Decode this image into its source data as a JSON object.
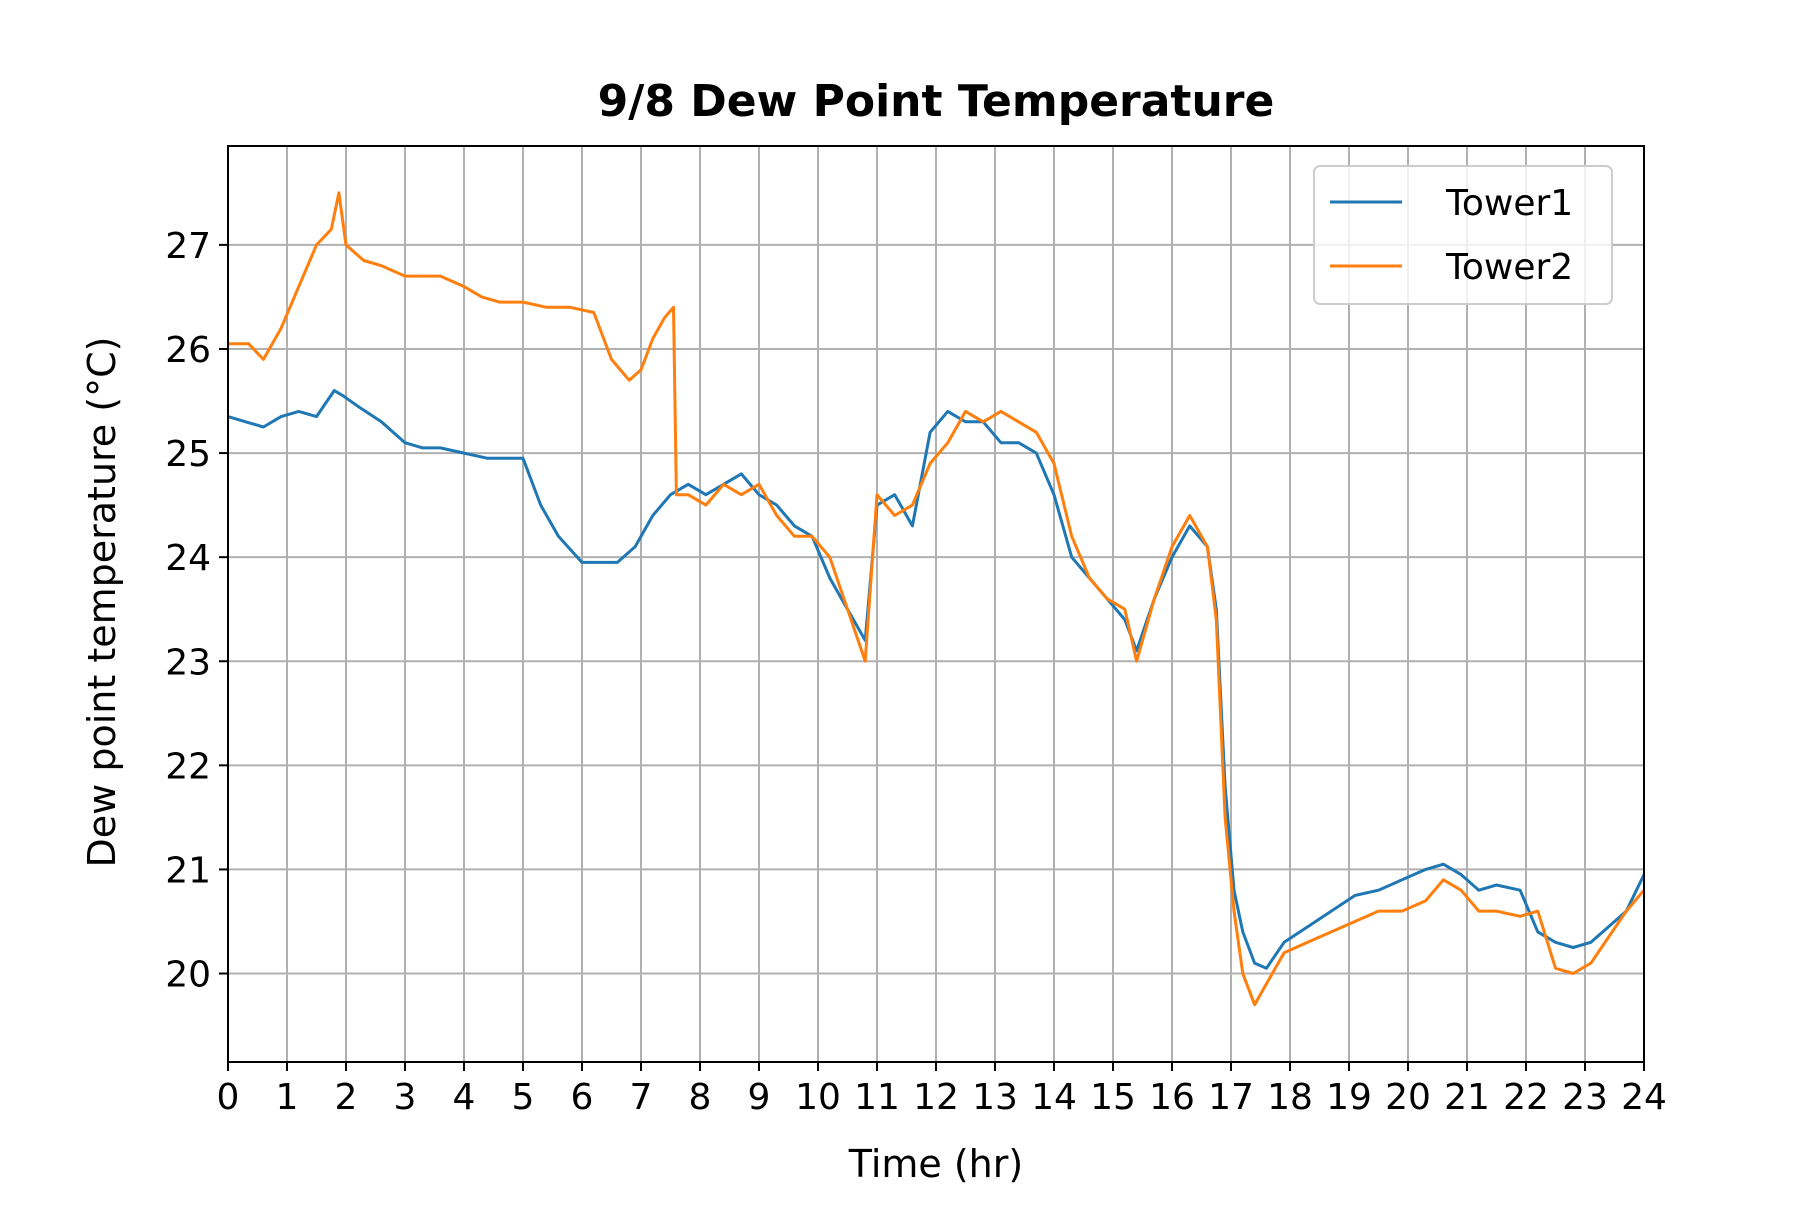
{
  "chart_data": {
    "type": "line",
    "title": "9/8 Dew Point Temperature",
    "xlabel": "Time (hr)",
    "ylabel": "Dew point temperature (°C)",
    "xlim": [
      0,
      24
    ],
    "ylim": [
      19.15,
      27.95
    ],
    "x_ticks": [
      0,
      1,
      2,
      3,
      4,
      5,
      6,
      7,
      8,
      9,
      10,
      11,
      12,
      13,
      14,
      15,
      16,
      17,
      18,
      19,
      20,
      21,
      22,
      23,
      24
    ],
    "y_ticks": [
      20,
      21,
      22,
      23,
      24,
      25,
      26,
      27
    ],
    "grid": true,
    "legend_position": "top-right",
    "series": [
      {
        "name": "Tower1",
        "color": "#1f77b4",
        "x": [
          0,
          0.3,
          0.6,
          0.9,
          1.2,
          1.5,
          1.8,
          1.95,
          2.2,
          2.6,
          3.0,
          3.3,
          3.6,
          4.0,
          4.4,
          4.8,
          5.0,
          5.3,
          5.6,
          6.0,
          6.3,
          6.6,
          6.9,
          7.2,
          7.5,
          7.8,
          8.1,
          8.4,
          8.7,
          9.0,
          9.3,
          9.6,
          9.9,
          10.2,
          10.5,
          10.8,
          11.0,
          11.3,
          11.6,
          11.9,
          12.2,
          12.5,
          12.8,
          13.1,
          13.4,
          13.7,
          14.0,
          14.3,
          14.6,
          14.9,
          15.2,
          15.4,
          15.7,
          16.0,
          16.3,
          16.6,
          16.75,
          16.9,
          17.05,
          17.2,
          17.4,
          17.6,
          17.9,
          18.3,
          18.7,
          19.1,
          19.5,
          19.9,
          20.3,
          20.6,
          20.9,
          21.2,
          21.5,
          21.9,
          22.2,
          22.5,
          22.8,
          23.1,
          23.4,
          23.7,
          24.0
        ],
        "y": [
          25.35,
          25.3,
          25.25,
          25.35,
          25.4,
          25.35,
          25.6,
          25.55,
          25.45,
          25.3,
          25.1,
          25.05,
          25.05,
          25.0,
          24.95,
          24.95,
          24.95,
          24.5,
          24.2,
          23.95,
          23.95,
          23.95,
          24.1,
          24.4,
          24.6,
          24.7,
          24.6,
          24.7,
          24.8,
          24.6,
          24.5,
          24.3,
          24.2,
          23.8,
          23.5,
          23.2,
          24.5,
          24.6,
          24.3,
          25.2,
          25.4,
          25.3,
          25.3,
          25.1,
          25.1,
          25.0,
          24.6,
          24.0,
          23.8,
          23.6,
          23.4,
          23.1,
          23.6,
          24.0,
          24.3,
          24.1,
          23.5,
          21.8,
          20.8,
          20.4,
          20.1,
          20.05,
          20.3,
          20.45,
          20.6,
          20.75,
          20.8,
          20.9,
          21.0,
          21.05,
          20.95,
          20.8,
          20.85,
          20.8,
          20.4,
          20.3,
          20.25,
          20.3,
          20.45,
          20.6,
          20.95
        ]
      },
      {
        "name": "Tower2",
        "color": "#ff7f0e",
        "x": [
          0,
          0.35,
          0.6,
          0.9,
          1.2,
          1.5,
          1.75,
          1.88,
          2.0,
          2.3,
          2.6,
          3.0,
          3.3,
          3.6,
          4.0,
          4.3,
          4.6,
          5.0,
          5.4,
          5.8,
          6.2,
          6.5,
          6.8,
          7.0,
          7.2,
          7.4,
          7.55,
          7.6,
          7.8,
          8.1,
          8.4,
          8.7,
          9.0,
          9.3,
          9.6,
          9.9,
          10.2,
          10.5,
          10.8,
          11.0,
          11.3,
          11.6,
          11.9,
          12.2,
          12.5,
          12.8,
          13.1,
          13.4,
          13.7,
          14.0,
          14.3,
          14.6,
          14.9,
          15.2,
          15.4,
          15.7,
          16.0,
          16.3,
          16.6,
          16.75,
          16.9,
          17.05,
          17.2,
          17.4,
          17.6,
          17.9,
          18.3,
          18.7,
          19.1,
          19.5,
          19.9,
          20.3,
          20.6,
          20.9,
          21.2,
          21.5,
          21.9,
          22.2,
          22.5,
          22.8,
          23.1,
          23.4,
          23.7,
          24.0
        ],
        "y": [
          26.05,
          26.05,
          25.9,
          26.2,
          26.6,
          27.0,
          27.15,
          27.5,
          27.0,
          26.85,
          26.8,
          26.7,
          26.7,
          26.7,
          26.6,
          26.5,
          26.45,
          26.45,
          26.4,
          26.4,
          26.35,
          25.9,
          25.7,
          25.8,
          26.1,
          26.3,
          26.4,
          24.6,
          24.6,
          24.5,
          24.7,
          24.6,
          24.7,
          24.4,
          24.2,
          24.2,
          24.0,
          23.5,
          23.0,
          24.6,
          24.4,
          24.5,
          24.9,
          25.1,
          25.4,
          25.3,
          25.4,
          25.3,
          25.2,
          24.9,
          24.2,
          23.8,
          23.6,
          23.5,
          23.0,
          23.6,
          24.1,
          24.4,
          24.1,
          23.4,
          21.5,
          20.6,
          20.0,
          19.7,
          19.9,
          20.2,
          20.3,
          20.4,
          20.5,
          20.6,
          20.6,
          20.7,
          20.9,
          20.8,
          20.6,
          20.6,
          20.55,
          20.6,
          20.05,
          20.0,
          20.1,
          20.35,
          20.6,
          20.8
        ]
      }
    ]
  }
}
